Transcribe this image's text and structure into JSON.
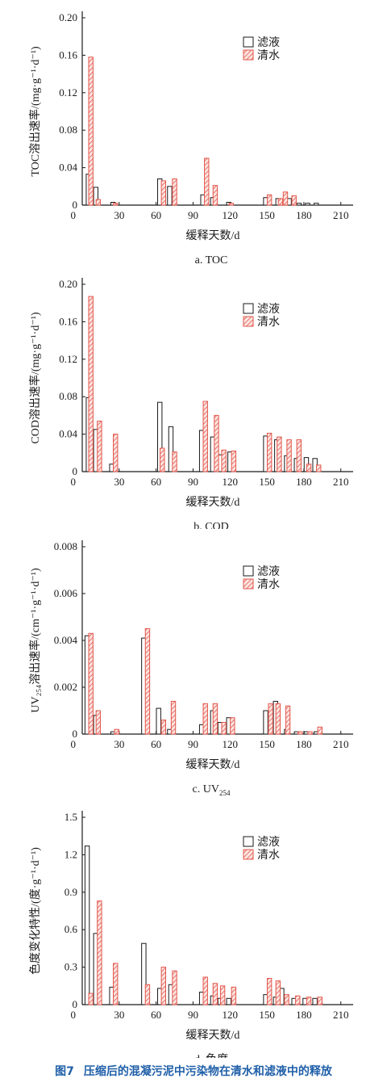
{
  "figure_caption": {
    "number": "图7",
    "text": "压缩后的混凝污泥中污染物在清水和滤液中的释放"
  },
  "colors": {
    "filtrate": "#000000",
    "clear_water": "#e2574c"
  },
  "chart_data": [
    {
      "id": "a",
      "type": "bar",
      "caption": "a. TOC",
      "ylabel": "TOC溶出速率/(mg·g⁻¹·d⁻¹)",
      "xlabel": "缓释天数/d",
      "ylim": [
        0,
        0.2
      ],
      "yticks": [
        "0",
        "0.04",
        "0.08",
        "0.12",
        "0.16",
        "0.20"
      ],
      "xlim": [
        0,
        220
      ],
      "xticks": [
        0,
        30,
        60,
        90,
        120,
        150,
        180,
        210
      ],
      "legend": {
        "placement": "top-center",
        "entries": [
          "滤液",
          "清水"
        ]
      },
      "series": [
        {
          "name": "滤液",
          "style": "open",
          "points": [
            [
              5,
              0.033
            ],
            [
              11,
              0.019
            ],
            [
              25,
              0.003
            ],
            [
              63,
              0.028
            ],
            [
              71,
              0.02
            ],
            [
              98,
              0.011
            ],
            [
              106,
              0.008
            ],
            [
              119,
              0.003
            ],
            [
              149,
              0.008
            ],
            [
              159,
              0.007
            ],
            [
              168,
              0.007
            ],
            [
              176,
              0.002
            ],
            [
              183,
              0.002
            ],
            [
              190,
              0.002
            ]
          ]
        },
        {
          "name": "清水",
          "style": "hatched",
          "points": [
            [
              7,
              0.158
            ],
            [
              13,
              0.006
            ],
            [
              27,
              0.002
            ],
            [
              66,
              0.026
            ],
            [
              75,
              0.028
            ],
            [
              101,
              0.05
            ],
            [
              108,
              0.021
            ],
            [
              121,
              0.002
            ],
            [
              152,
              0.011
            ],
            [
              161,
              0.007
            ],
            [
              165,
              0.014
            ],
            [
              172,
              0.01
            ]
          ]
        }
      ]
    },
    {
      "id": "b",
      "type": "bar",
      "caption": "b. COD",
      "ylabel": "COD溶出速率/(mg·g⁻¹·d⁻¹)",
      "xlabel": "缓释天数/d",
      "ylim": [
        0,
        0.2
      ],
      "yticks": [
        "0",
        "0.04",
        "0.08",
        "0.12",
        "0.16",
        "0.20"
      ],
      "xlim": [
        0,
        220
      ],
      "xticks": [
        0,
        30,
        60,
        90,
        120,
        150,
        180,
        210
      ],
      "legend": {
        "placement": "top-center",
        "entries": [
          "滤液",
          "清水"
        ]
      },
      "series": [
        {
          "name": "滤液",
          "style": "open",
          "points": [
            [
              5,
              0.079
            ],
            [
              11,
              0.045
            ],
            [
              24,
              0.008
            ],
            [
              63,
              0.074
            ],
            [
              72,
              0.048
            ],
            [
              97,
              0.044
            ],
            [
              106,
              0.037
            ],
            [
              112,
              0.018
            ],
            [
              120,
              0.021
            ],
            [
              149,
              0.038
            ],
            [
              158,
              0.034
            ],
            [
              166,
              0.017
            ],
            [
              174,
              0.014
            ],
            [
              182,
              0.015
            ],
            [
              189,
              0.014
            ]
          ]
        },
        {
          "name": "清水",
          "style": "hatched",
          "points": [
            [
              7,
              0.187
            ],
            [
              14,
              0.054
            ],
            [
              27,
              0.04
            ],
            [
              65,
              0.025
            ],
            [
              75,
              0.021
            ],
            [
              100,
              0.075
            ],
            [
              109,
              0.06
            ],
            [
              115,
              0.023
            ],
            [
              123,
              0.022
            ],
            [
              152,
              0.041
            ],
            [
              160,
              0.037
            ],
            [
              168,
              0.034
            ],
            [
              176,
              0.034
            ],
            [
              184,
              0.008
            ],
            [
              192,
              0.007
            ]
          ]
        }
      ]
    },
    {
      "id": "c",
      "type": "bar",
      "caption": "c. UV",
      "caption_sub": "254",
      "ylabel": "UV₂₅₄溶出速率/(cm⁻¹·g⁻¹·d⁻¹)",
      "xlabel": "缓释天数/d",
      "ylim": [
        0,
        0.008
      ],
      "yticks": [
        "0",
        "0.002",
        "0.004",
        "0.006",
        "0.008"
      ],
      "xlim": [
        0,
        220
      ],
      "xticks": [
        0,
        30,
        60,
        90,
        120,
        150,
        180,
        210
      ],
      "legend": {
        "placement": "top-center",
        "entries": [
          "滤液",
          "清水"
        ]
      },
      "series": [
        {
          "name": "滤液",
          "style": "open",
          "points": [
            [
              4,
              0.0042
            ],
            [
              11,
              0.0008
            ],
            [
              25,
              0.0001
            ],
            [
              50,
              0.0041
            ],
            [
              62,
              0.0011
            ],
            [
              71,
              0.0002
            ],
            [
              97,
              0.0004
            ],
            [
              106,
              0.001
            ],
            [
              112,
              0.0005
            ],
            [
              119,
              0.0007
            ],
            [
              149,
              0.001
            ],
            [
              157,
              0.0014
            ],
            [
              166,
              0.0002
            ],
            [
              174,
              0.0001
            ],
            [
              182,
              0.0001
            ],
            [
              190,
              0.0001
            ]
          ]
        },
        {
          "name": "清水",
          "style": "hatched",
          "points": [
            [
              7,
              0.0043
            ],
            [
              13,
              0.001
            ],
            [
              28,
              0.0002
            ],
            [
              53,
              0.0045
            ],
            [
              66,
              0.0006
            ],
            [
              74,
              0.0014
            ],
            [
              100,
              0.0013
            ],
            [
              108,
              0.0013
            ],
            [
              115,
              0.0005
            ],
            [
              122,
              0.0007
            ],
            [
              153,
              0.0013
            ],
            [
              159,
              0.0013
            ],
            [
              167,
              0.0012
            ],
            [
              177,
              0.0001
            ],
            [
              185,
              0.0001
            ],
            [
              193,
              0.0003
            ]
          ]
        }
      ]
    },
    {
      "id": "d",
      "type": "bar",
      "caption": "d. 色度",
      "ylabel": "色度变化特性/(度·g⁻¹·d⁻¹)",
      "xlabel": "缓释天数/d",
      "ylim": [
        0,
        1.5
      ],
      "yticks": [
        "0",
        "0.3",
        "0.6",
        "0.9",
        "1.2",
        "1.5"
      ],
      "xlim": [
        0,
        220
      ],
      "xticks": [
        0,
        30,
        60,
        90,
        120,
        150,
        180,
        210
      ],
      "legend": {
        "placement": "top-center",
        "entries": [
          "滤液",
          "清水"
        ]
      },
      "series": [
        {
          "name": "滤液",
          "style": "open",
          "points": [
            [
              4,
              1.27
            ],
            [
              11,
              0.57
            ],
            [
              24,
              0.14
            ],
            [
              50,
              0.49
            ],
            [
              63,
              0.13
            ],
            [
              72,
              0.16
            ],
            [
              97,
              0.1
            ],
            [
              106,
              0.07
            ],
            [
              112,
              0.05
            ],
            [
              119,
              0.05
            ],
            [
              149,
              0.08
            ],
            [
              157,
              0.06
            ],
            [
              162,
              0.13
            ],
            [
              172,
              0.05
            ],
            [
              181,
              0.05
            ],
            [
              189,
              0.05
            ]
          ]
        },
        {
          "name": "清水",
          "style": "hatched",
          "points": [
            [
              7,
              0.09
            ],
            [
              14,
              0.83
            ],
            [
              27,
              0.33
            ],
            [
              53,
              0.16
            ],
            [
              66,
              0.3
            ],
            [
              75,
              0.27
            ],
            [
              100,
              0.22
            ],
            [
              108,
              0.17
            ],
            [
              114,
              0.15
            ],
            [
              123,
              0.14
            ],
            [
              152,
              0.21
            ],
            [
              159,
              0.19
            ],
            [
              166,
              0.08
            ],
            [
              175,
              0.07
            ],
            [
              184,
              0.06
            ],
            [
              193,
              0.06
            ]
          ]
        }
      ]
    }
  ]
}
